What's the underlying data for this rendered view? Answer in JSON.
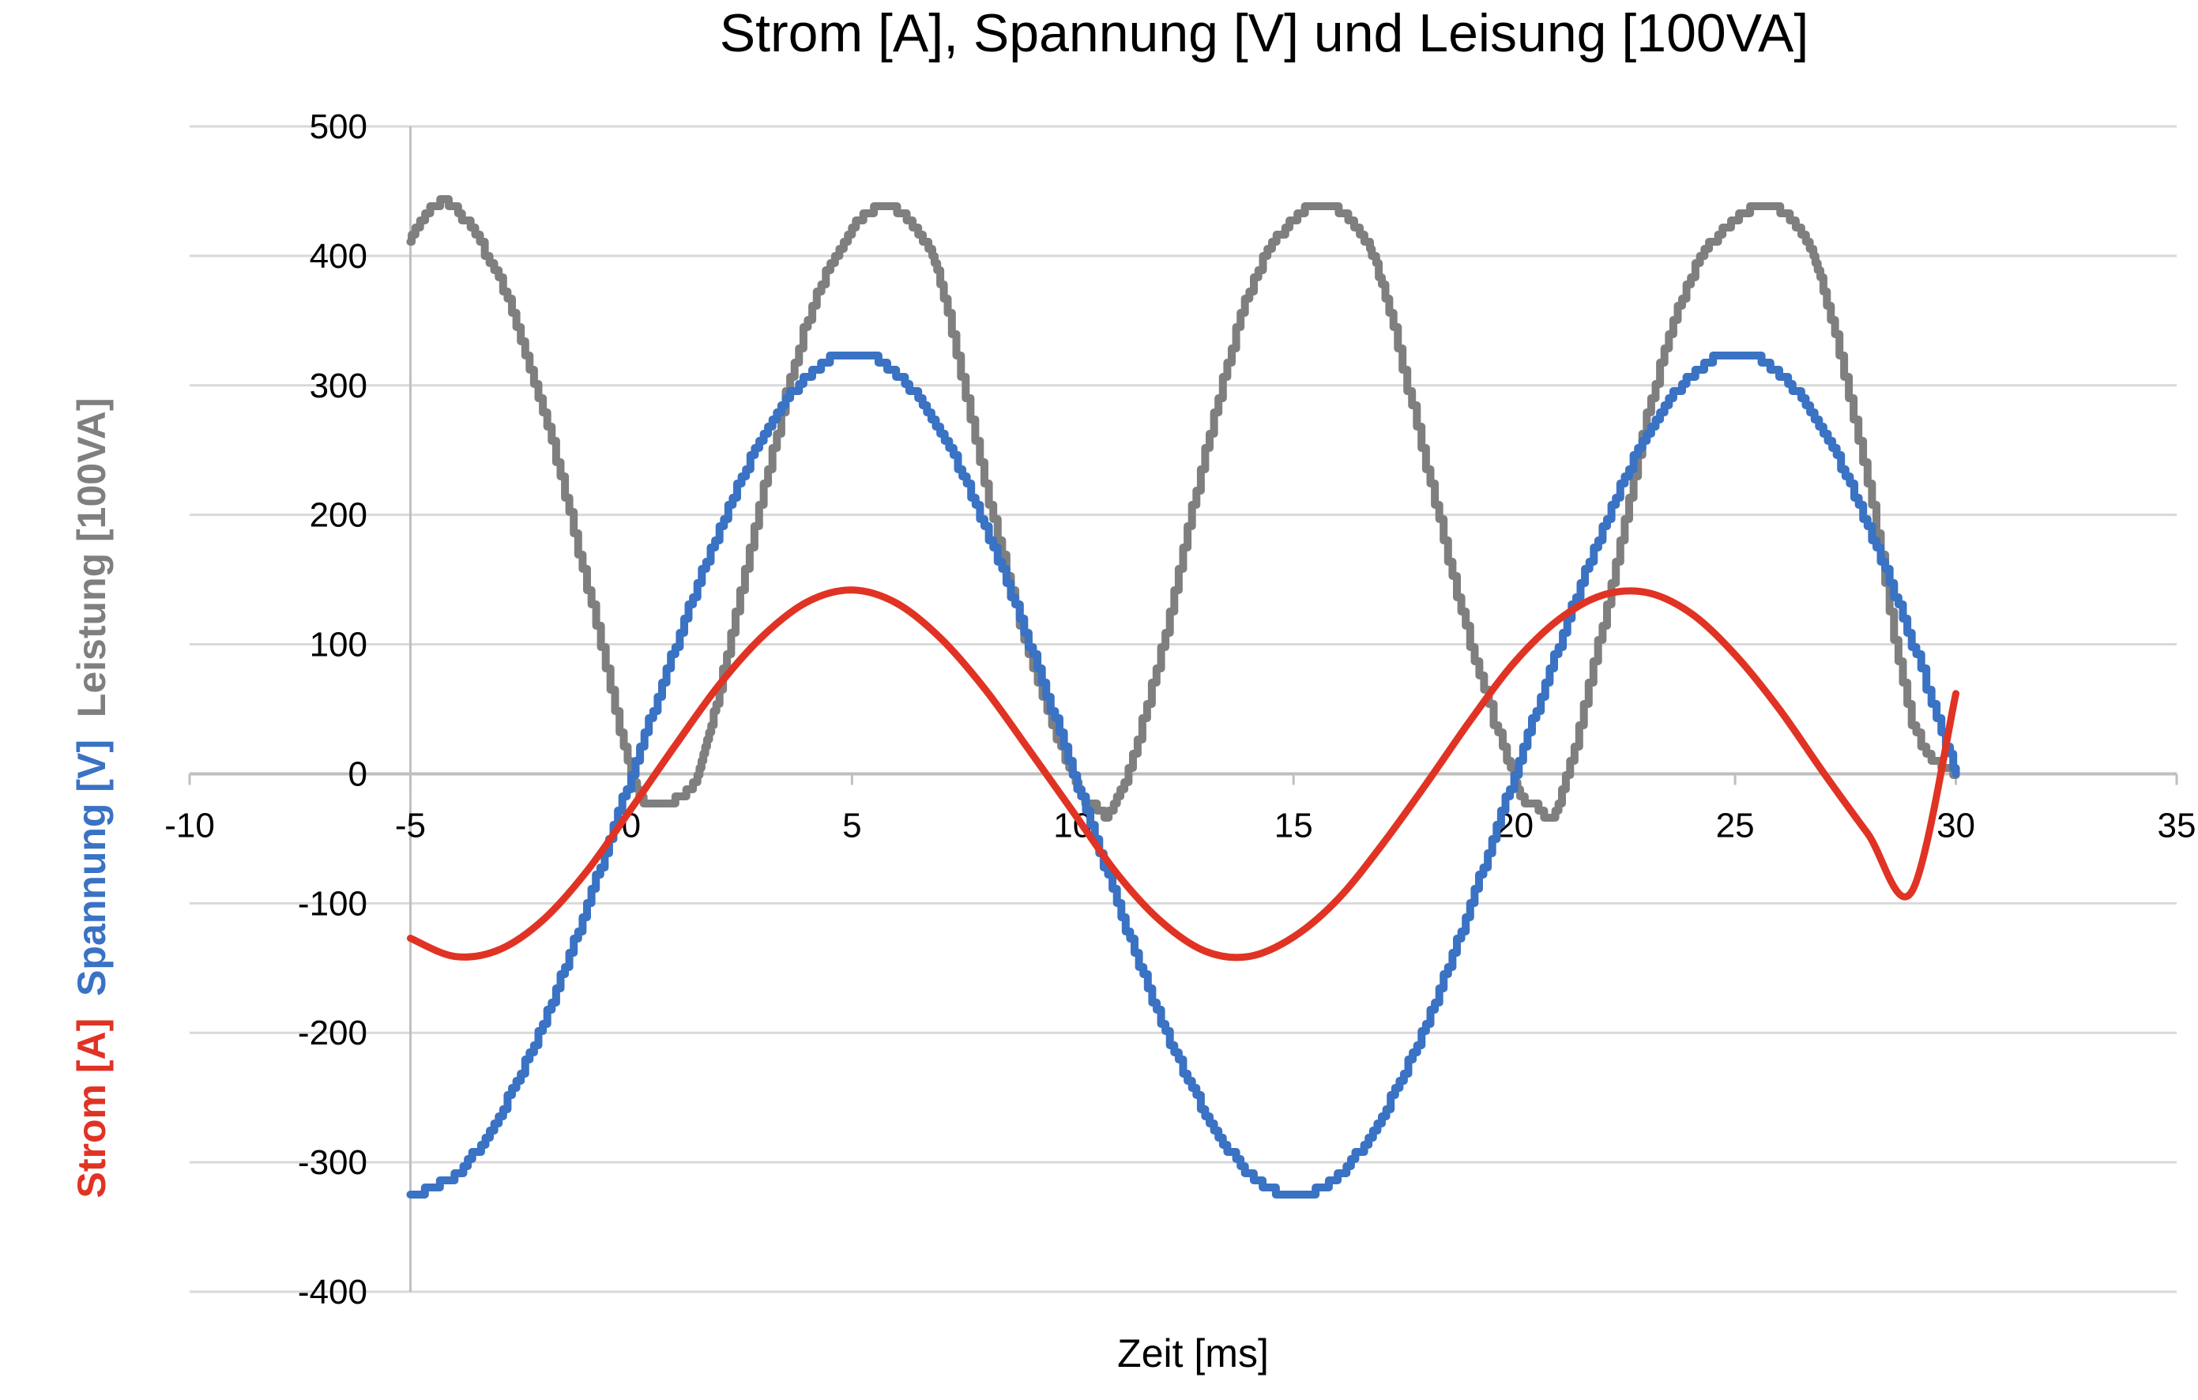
{
  "chart_data": {
    "type": "line",
    "title": "Strom [A], Spannung [V] und Leisung [100VA]",
    "xlabel": "Zeit [ms]",
    "ylabel_parts": [
      {
        "text": "Strom [A]",
        "color": "#e03324"
      },
      {
        "text": "Spannung [V]",
        "color": "#3a72c4"
      },
      {
        "text": "Leistung [100VA]",
        "color": "#7f7f7f"
      }
    ],
    "xlim": [
      -10,
      35
    ],
    "ylim": [
      -400,
      500
    ],
    "x_ticks": [
      -10,
      -5,
      0,
      5,
      10,
      15,
      20,
      25,
      30,
      35
    ],
    "y_ticks": [
      -400,
      -300,
      -200,
      -100,
      0,
      100,
      200,
      300,
      400,
      500
    ],
    "grid": "horizontal",
    "colors": {
      "gridline": "#d9d9d9",
      "axis": "#bfbfbf"
    },
    "series": [
      {
        "color": "#e03324",
        "style": "smooth",
        "x": [
          -5,
          -4,
          -3,
          -2,
          -1,
          0,
          1,
          2,
          3,
          4,
          5,
          6,
          7,
          8,
          9,
          10,
          11,
          12,
          13,
          14,
          15,
          16,
          17,
          18,
          19,
          20,
          21,
          22,
          23,
          24,
          25,
          26,
          27,
          28,
          29,
          30
        ],
        "y": [
          -127,
          -141,
          -136,
          -113,
          -75,
          -27,
          22,
          69,
          107,
          133,
          142,
          132,
          105,
          66,
          19,
          -29,
          -77,
          -114,
          -137,
          -141,
          -126,
          -97,
          -55,
          -8,
          41,
          86,
          119,
          138,
          140,
          124,
          92,
          50,
          1,
          -46,
          -91,
          62
        ]
      },
      {
        "color": "#3a72c4",
        "style": "stepped",
        "x": [
          -5,
          -4,
          -3,
          -2,
          -1,
          0,
          1,
          2,
          3,
          4,
          5,
          6,
          7,
          8,
          9,
          10,
          11,
          12,
          13,
          14,
          15,
          16,
          17,
          18,
          19,
          20,
          21,
          22,
          23,
          24,
          25,
          26,
          27,
          28,
          29,
          30
        ],
        "y": [
          -325,
          -309,
          -263,
          -191,
          -100,
          0,
          100,
          191,
          263,
          309,
          325,
          309,
          263,
          191,
          100,
          0,
          -100,
          -191,
          -263,
          -309,
          -325,
          -309,
          -263,
          -191,
          -100,
          0,
          100,
          191,
          263,
          309,
          325,
          309,
          263,
          191,
          100,
          0
        ]
      },
      {
        "color": "#7f7f7f",
        "style": "stepped",
        "x": [
          -5,
          -4.5,
          -4,
          -3,
          -2,
          -1,
          0,
          0.5,
          1,
          1.5,
          2,
          3,
          4,
          5,
          5.8,
          6.5,
          7,
          8,
          9,
          10,
          10.5,
          11,
          12,
          13,
          14,
          15,
          15.8,
          16.5,
          17,
          18,
          19,
          20,
          20.5,
          21,
          22,
          23,
          24,
          25,
          25.8,
          26.5,
          27,
          28,
          29,
          30
        ],
        "y": [
          413,
          438,
          436,
          381,
          280,
          143,
          0,
          -23,
          -20,
          0,
          67,
          222,
          353,
          421,
          438,
          418,
          380,
          224,
          93,
          -3,
          -25,
          -20,
          97,
          250,
          374,
          430,
          438,
          418,
          378,
          237,
          100,
          -5,
          -25,
          -22,
          117,
          277,
          385,
          429,
          438,
          418,
          374,
          225,
          40,
          0
        ]
      }
    ]
  }
}
